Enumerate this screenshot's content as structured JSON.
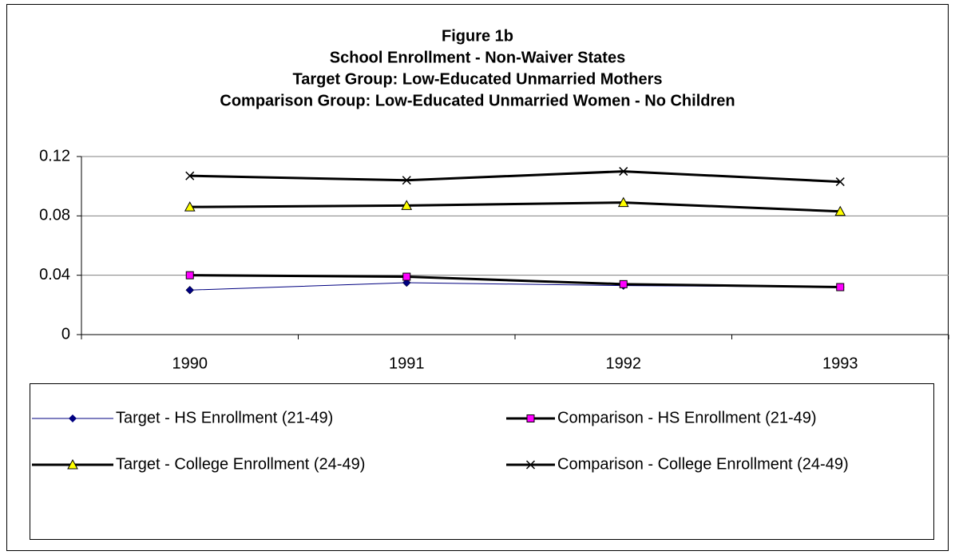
{
  "chart_data": {
    "type": "line",
    "title": [
      "Figure 1b",
      "School Enrollment - Non-Waiver States",
      "Target Group: Low-Educated Unmarried Mothers",
      "Comparison Group: Low-Educated Unmarried Women - No Children"
    ],
    "categories": [
      "1990",
      "1991",
      "1992",
      "1993"
    ],
    "series": [
      {
        "name": "Target - HS Enrollment (21-49)",
        "color": "#000080",
        "marker": "diamond",
        "marker_color": "#000080",
        "values": [
          0.03,
          0.035,
          0.033,
          0.032
        ]
      },
      {
        "name": "Comparison - HS Enrollment (21-49)",
        "color": "#000000",
        "marker": "square",
        "marker_color": "#ff00ff",
        "values": [
          0.04,
          0.039,
          0.034,
          0.032
        ]
      },
      {
        "name": "Target - College Enrollment (24-49)",
        "color": "#000000",
        "marker": "triangle",
        "marker_color": "#ffff00",
        "values": [
          0.086,
          0.087,
          0.089,
          0.083
        ]
      },
      {
        "name": "Comparison - College Enrollment (24-49)",
        "color": "#000000",
        "marker": "x",
        "marker_color": "#000000",
        "values": [
          0.107,
          0.104,
          0.11,
          0.103
        ]
      }
    ],
    "ylim": [
      0,
      0.12
    ],
    "yticks": [
      0,
      0.04,
      0.08,
      0.12
    ],
    "grid": true,
    "legend": "bottom"
  }
}
